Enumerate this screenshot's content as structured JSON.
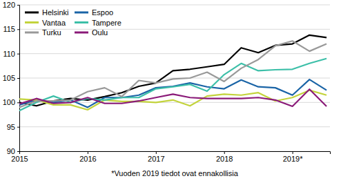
{
  "chart_data": {
    "type": "line",
    "x": [
      2015,
      2015.25,
      2015.5,
      2015.75,
      2016,
      2016.25,
      2016.5,
      2016.75,
      2017,
      2017.25,
      2017.5,
      2017.75,
      2018,
      2018.25,
      2018.5,
      2018.75,
      2019,
      2019.25,
      2019.5
    ],
    "series": [
      {
        "name": "Helsinki",
        "color": "#000000",
        "values": [
          100,
          99.3,
          100.3,
          100.8,
          100.5,
          101.2,
          102,
          103.3,
          104,
          106.5,
          106.8,
          107.3,
          107.8,
          111.2,
          110.2,
          111.7,
          112,
          113.8,
          113.3
        ]
      },
      {
        "name": "Espoo",
        "color": "#1a64a6",
        "values": [
          99.5,
          100.5,
          100,
          100.5,
          99,
          101,
          101,
          101.5,
          103,
          103.3,
          104,
          103.2,
          102.8,
          104.6,
          103.2,
          103,
          101.5,
          104.7,
          102.5
        ]
      },
      {
        "name": "Vantaa",
        "color": "#c3d33c",
        "values": [
          100.7,
          100.5,
          99.5,
          99.5,
          98.5,
          100.5,
          100.2,
          100.2,
          100,
          100.5,
          99.3,
          101.3,
          101.7,
          101.5,
          102,
          100.3,
          101,
          102.5,
          101.5
        ]
      },
      {
        "name": "Tampere",
        "color": "#3cbfa8",
        "values": [
          98.3,
          100,
          101.3,
          100,
          100.8,
          100.5,
          101,
          101,
          102.8,
          103.2,
          103.7,
          102.3,
          105.7,
          108,
          106.5,
          106.7,
          106.8,
          108,
          109
        ]
      },
      {
        "name": "Turku",
        "color": "#999999",
        "values": [
          99,
          100.3,
          100.3,
          100.5,
          102.2,
          103,
          101.2,
          104.5,
          104,
          104.8,
          105,
          106.2,
          104.3,
          107,
          108.8,
          111.6,
          112.6,
          110.5,
          112
        ]
      },
      {
        "name": "Oulu",
        "color": "#8a1a78",
        "values": [
          99.7,
          100.8,
          99.8,
          100,
          101,
          99.8,
          99.8,
          100.3,
          101,
          101.7,
          101,
          100.8,
          100.8,
          100.8,
          101,
          100.5,
          99.2,
          102.7,
          99.2
        ]
      }
    ],
    "xlim": [
      2015,
      2019.55
    ],
    "xticks": [
      2015,
      2016,
      2017,
      2018,
      {
        "value": 2019,
        "label": "2019*"
      }
    ],
    "ylim": [
      90,
      120
    ],
    "yticks": [
      90,
      95,
      100,
      105,
      110,
      115,
      120
    ],
    "grid": true,
    "legend": "upper left",
    "annotations": [
      "*Vuoden 2019 tiedot ovat ennakollisia"
    ]
  }
}
